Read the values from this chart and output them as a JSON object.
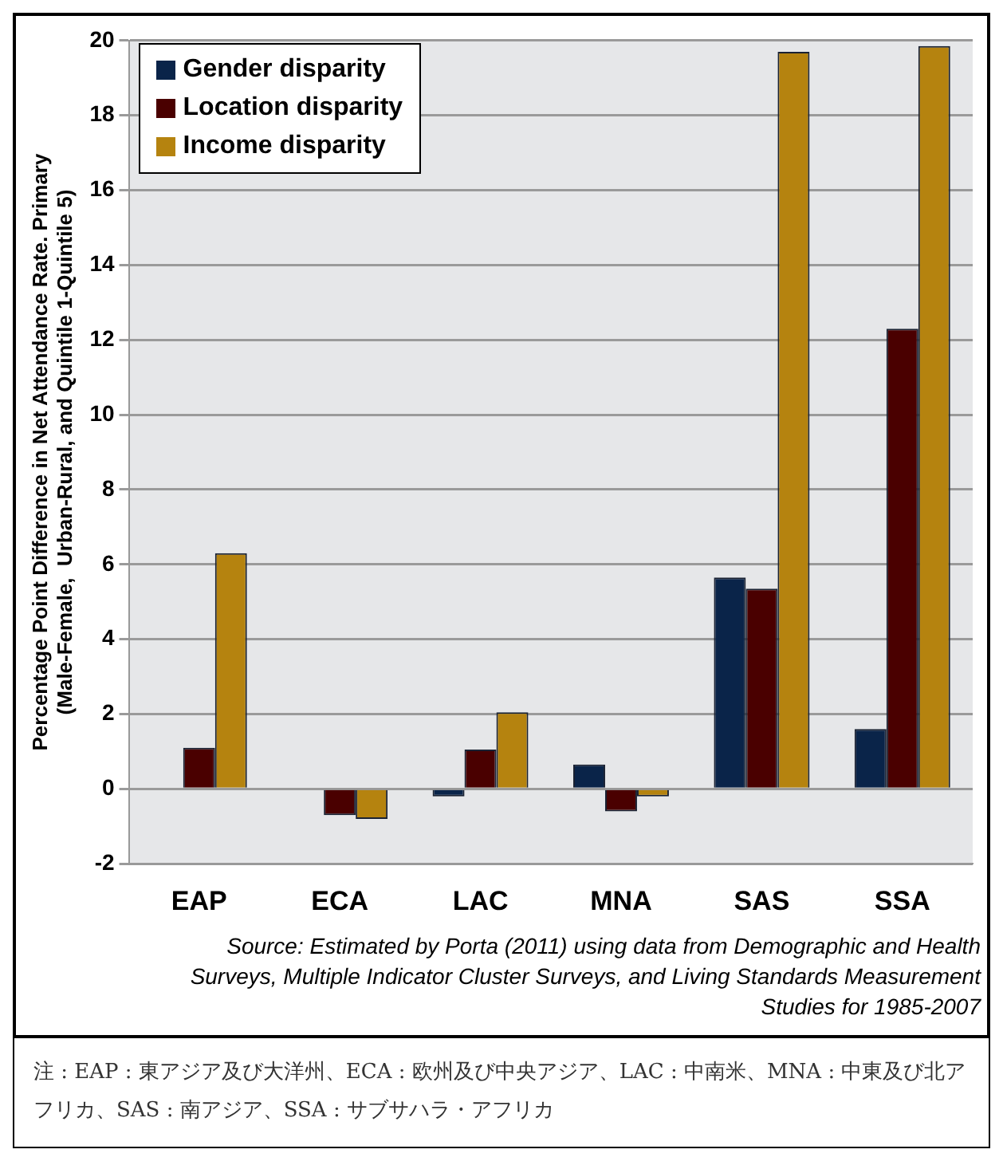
{
  "chart_data": {
    "type": "bar",
    "ylabel": "Percentage Point Difference in Net Attendance Rate. Primary\n(Male-Female,  Urban-Rural, and Quintile 1-Quintile 5)",
    "categories": [
      "EAP",
      "ECA",
      "LAC",
      "MNA",
      "SAS",
      "SSA"
    ],
    "series": [
      {
        "name": "Gender disparity",
        "color": "#0a2449",
        "values": [
          null,
          null,
          -0.2,
          0.65,
          5.65,
          1.6
        ]
      },
      {
        "name": "Location disparity",
        "color": "#4a0000",
        "values": [
          1.1,
          -0.7,
          1.05,
          -0.6,
          5.35,
          12.3
        ]
      },
      {
        "name": "Income disparity",
        "color": "#b5830f",
        "values": [
          6.3,
          -0.8,
          2.05,
          -0.2,
          19.7,
          19.85
        ]
      }
    ],
    "ylim": [
      -2,
      20
    ],
    "yticks": [
      -2,
      0,
      2,
      4,
      6,
      8,
      10,
      12,
      14,
      16,
      18,
      20
    ],
    "grid": "y",
    "legend": "top left",
    "annotations": [
      "Source: Estimated by Porta (2011) using data from Demographic and Health Surveys, Multiple Indicator Cluster Surveys, and Living Standards Measurement Studies for 1985-2007",
      "注 : EAP : 東アジア及び大洋州、ECA : 欧州及び中央アジア、LAC : 中南米、MNA : 中東及び北アフリカ、SAS : 南アジア、SSA : サブサハラ・アフリカ"
    ]
  }
}
